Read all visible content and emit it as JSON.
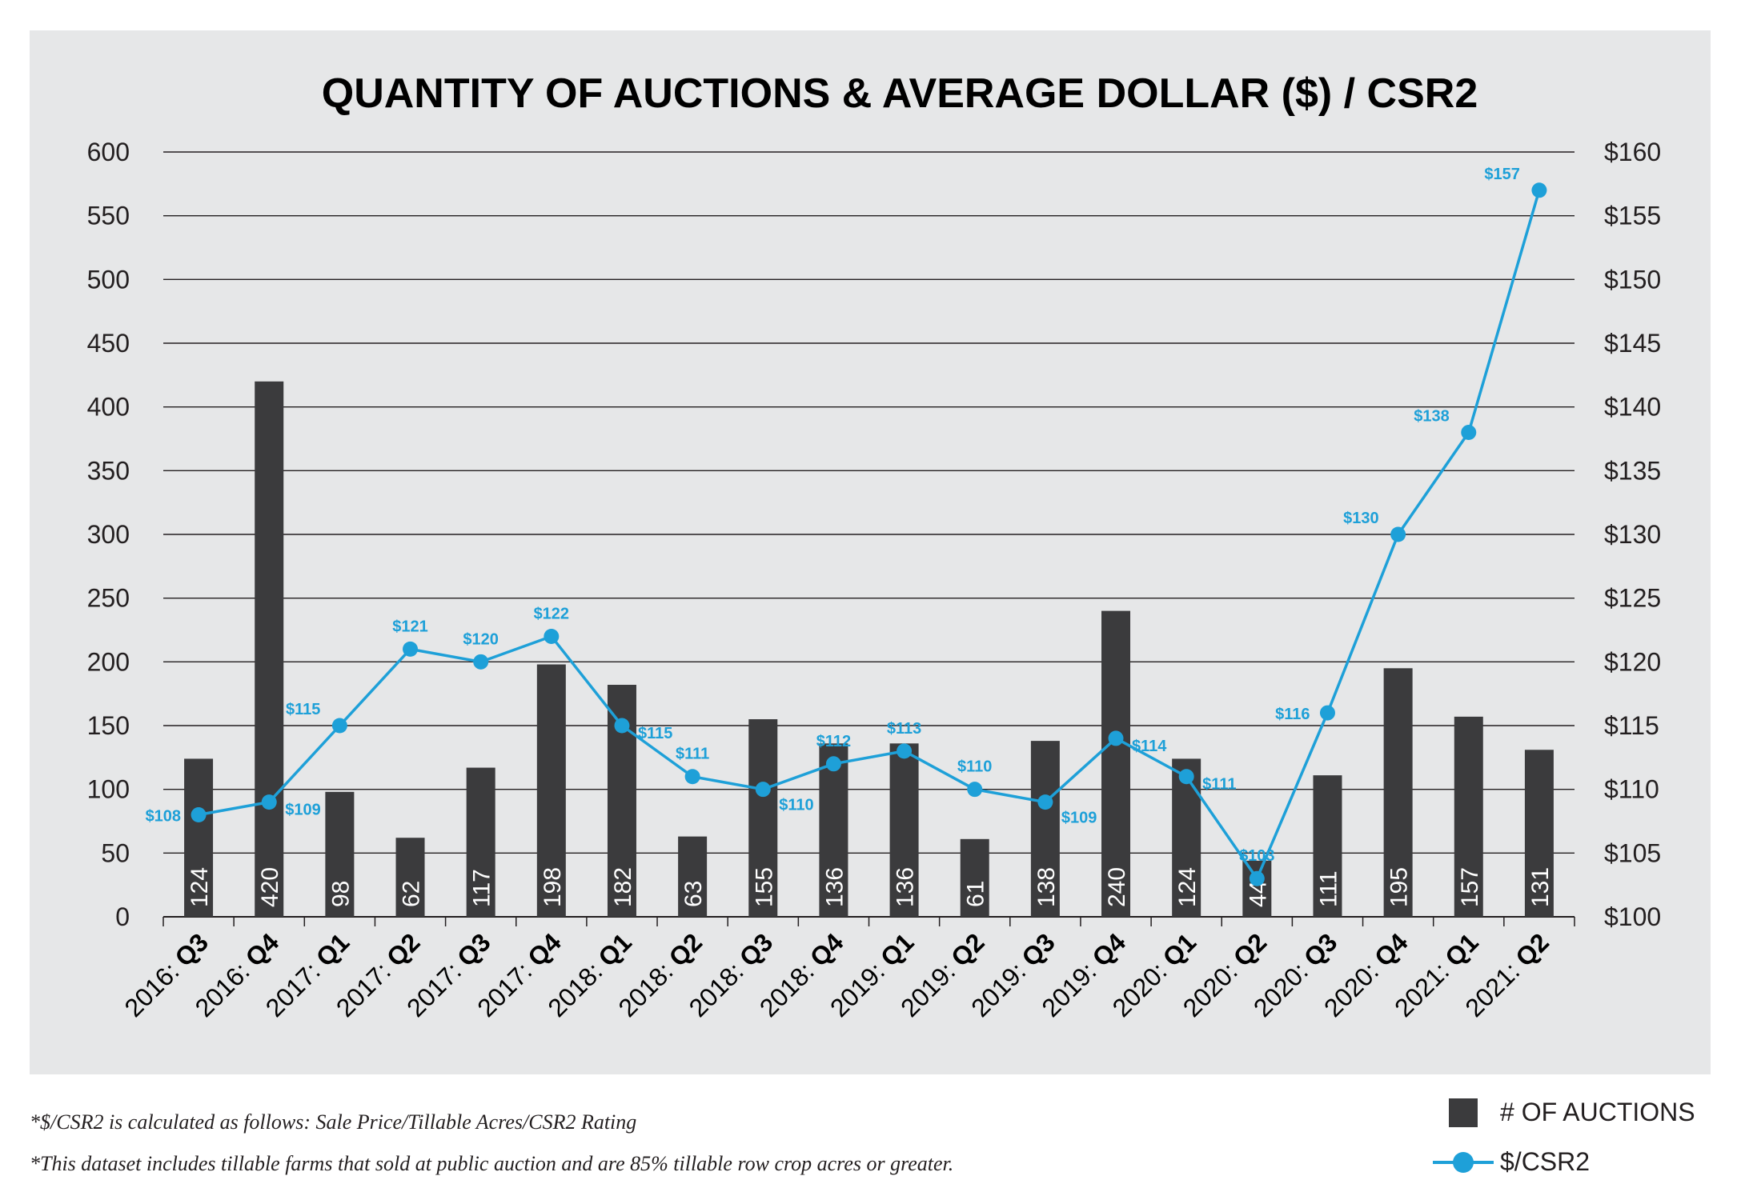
{
  "colors": {
    "panel": "#e6e7e8",
    "bar": "#3b3b3d",
    "line": "#1ea0d8",
    "grid": "#231f20",
    "text": "#231f20"
  },
  "chart_data": {
    "type": "bar+line",
    "title": "QUANTITY OF AUCTIONS & AVERAGE DOLLAR ($) / CSR2",
    "categories": [
      {
        "year": "2016: ",
        "quarter": "Q3"
      },
      {
        "year": "2016: ",
        "quarter": "Q4"
      },
      {
        "year": "2017: ",
        "quarter": "Q1"
      },
      {
        "year": "2017: ",
        "quarter": "Q2"
      },
      {
        "year": "2017: ",
        "quarter": "Q3"
      },
      {
        "year": "2017: ",
        "quarter": "Q4"
      },
      {
        "year": "2018: ",
        "quarter": "Q1"
      },
      {
        "year": "2018: ",
        "quarter": "Q2"
      },
      {
        "year": "2018: ",
        "quarter": "Q3"
      },
      {
        "year": "2018: ",
        "quarter": "Q4"
      },
      {
        "year": "2019: ",
        "quarter": "Q1"
      },
      {
        "year": "2019: ",
        "quarter": "Q2"
      },
      {
        "year": "2019: ",
        "quarter": "Q3"
      },
      {
        "year": "2019: ",
        "quarter": "Q4"
      },
      {
        "year": "2020: ",
        "quarter": "Q1"
      },
      {
        "year": "2020: ",
        "quarter": "Q2"
      },
      {
        "year": "2020: ",
        "quarter": "Q3"
      },
      {
        "year": "2020: ",
        "quarter": "Q4"
      },
      {
        "year": "2021: ",
        "quarter": "Q1"
      },
      {
        "year": "2021: ",
        "quarter": "Q2"
      }
    ],
    "series": [
      {
        "name": "# OF AUCTIONS",
        "type": "bar",
        "axis": "left",
        "values": [
          124,
          420,
          98,
          62,
          117,
          198,
          182,
          63,
          155,
          136,
          136,
          61,
          138,
          240,
          124,
          44,
          111,
          195,
          157,
          131
        ]
      },
      {
        "name": "$/CSR2",
        "type": "line",
        "axis": "right",
        "values": [
          108,
          109,
          115,
          121,
          120,
          122,
          115,
          111,
          110,
          112,
          113,
          110,
          109,
          114,
          111,
          103,
          116,
          130,
          138,
          157
        ],
        "labels": [
          "$108",
          "$109",
          "$115",
          "$121",
          "$120",
          "$122",
          "$115",
          "$111",
          "$110",
          "$112",
          "$113",
          "$110",
          "$109",
          "$114",
          "$111",
          "$103",
          "$116",
          "$130",
          "$138",
          "$157"
        ],
        "label_positions": [
          "left",
          "right",
          "above-left",
          "above",
          "above",
          "above",
          "right",
          "above",
          "below-right",
          "above",
          "above",
          "above",
          "below-right",
          "right",
          "right",
          "above",
          "left",
          "above-left",
          "above-left",
          "above-left"
        ]
      }
    ],
    "left_axis": {
      "ylim": [
        0,
        600
      ],
      "ticks": [
        "0",
        "50",
        "100",
        "150",
        "200",
        "250",
        "300",
        "350",
        "400",
        "450",
        "500",
        "550",
        "600"
      ]
    },
    "right_axis": {
      "ylim": [
        100,
        160
      ],
      "ticks": [
        "$100",
        "$105",
        "$110",
        "$115",
        "$120",
        "$125",
        "$130",
        "$135",
        "$140",
        "$145",
        "$150",
        "$155",
        "$160"
      ]
    },
    "grid": true,
    "legend_position": "bottom-right"
  },
  "footnotes": [
    "*$/CSR2 is calculated as follows: Sale Price/Tillable Acres/CSR2 Rating",
    "*This dataset includes tillable farms that sold at public auction and are 85% tillable row crop acres or greater."
  ],
  "legend": {
    "bars_label": "# OF AUCTIONS",
    "line_label": "$/CSR2"
  }
}
